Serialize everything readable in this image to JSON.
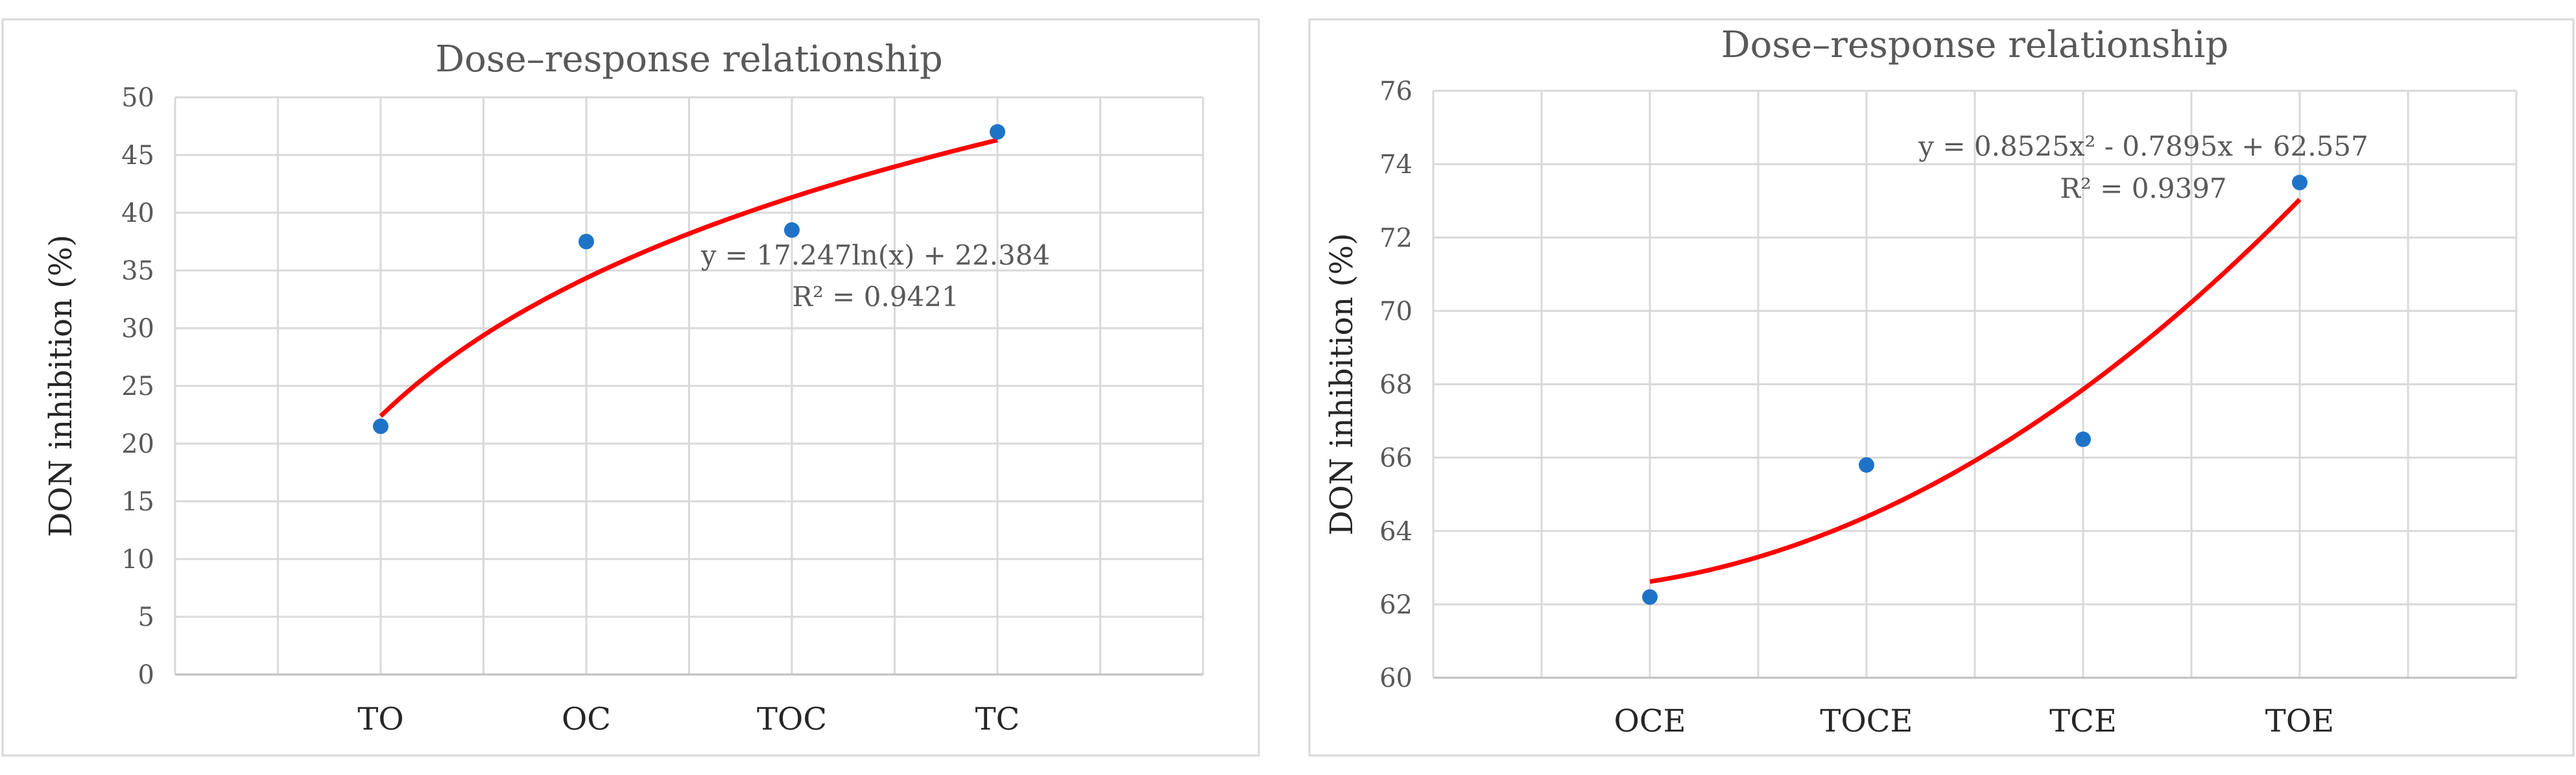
{
  "chart_data": [
    {
      "type": "scatter",
      "title": "Dose–response relationship",
      "xlabel": "",
      "ylabel": "DON inhibition (%)",
      "ylim": [
        0,
        50
      ],
      "ytick_step": 5,
      "yticks": [
        "0",
        "5",
        "10",
        "15",
        "20",
        "25",
        "30",
        "35",
        "40",
        "45",
        "50"
      ],
      "categories": [
        "TO",
        "OC",
        "TOC",
        "TC"
      ],
      "values": [
        21.5,
        37.5,
        38.5,
        47.0
      ],
      "trendline": {
        "kind": "logarithmic",
        "a": 17.247,
        "b": 22.384,
        "equation": "y = 17.247ln(x) + 22.384",
        "r2": "R² = 0.9421"
      },
      "point_color": "#1f73c7",
      "trend_color": "#ff0000",
      "grid": true,
      "legend": "none"
    },
    {
      "type": "scatter",
      "title": "Dose–response relationship",
      "xlabel": "",
      "ylabel": "DON inhibition (%)",
      "ylim": [
        60,
        76
      ],
      "ytick_step": 2,
      "yticks": [
        "60",
        "62",
        "64",
        "66",
        "68",
        "70",
        "72",
        "74",
        "76"
      ],
      "categories": [
        "OCE",
        "TOCE",
        "TCE",
        "TOE"
      ],
      "values": [
        62.2,
        65.8,
        66.5,
        73.5
      ],
      "trendline": {
        "kind": "polynomial",
        "a": 0.8525,
        "b": -0.7895,
        "c": 62.557,
        "equation": "y = 0.8525x² - 0.7895x + 62.557",
        "r2": "R² = 0.9397"
      },
      "point_color": "#1f73c7",
      "trend_color": "#ff0000",
      "grid": true,
      "legend": "none"
    }
  ]
}
